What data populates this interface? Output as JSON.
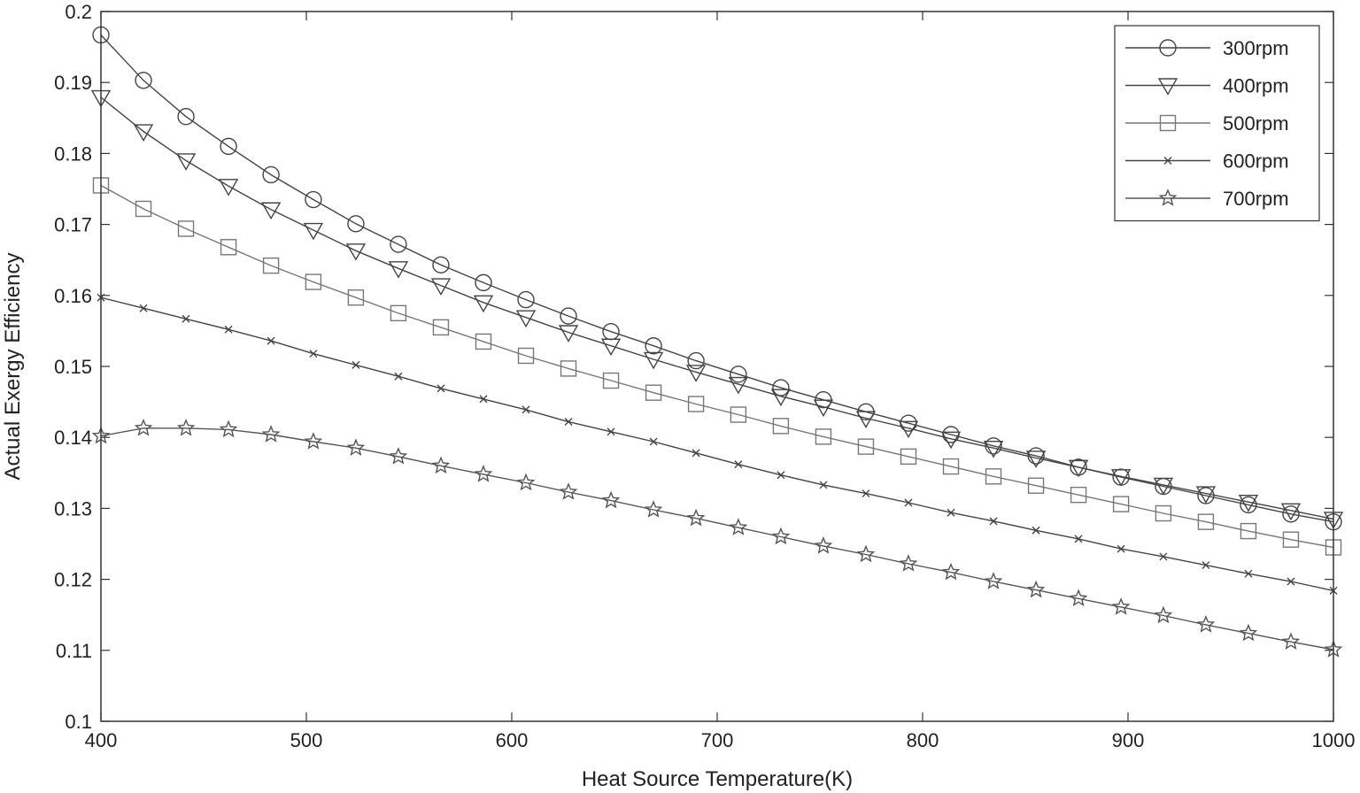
{
  "chart_data": {
    "type": "line",
    "title": "",
    "xlabel": "Heat Source Temperature(K)",
    "ylabel": "Actual Exergy Efficiency",
    "xlim": [
      400,
      1000
    ],
    "ylim": [
      0.1,
      0.2
    ],
    "x_ticks": [
      "400",
      "500",
      "600",
      "700",
      "800",
      "900",
      "1000"
    ],
    "y_ticks": [
      "0.1",
      "0.11",
      "0.12",
      "0.13",
      "0.14",
      "0.15",
      "0.16",
      "0.17",
      "0.18",
      "0.19",
      "0.2"
    ],
    "grid": false,
    "legend_position": "top-right",
    "x": [
      400,
      420.7,
      441.4,
      462.1,
      482.8,
      503.4,
      524.1,
      544.8,
      565.5,
      586.2,
      606.9,
      627.6,
      648.3,
      669.0,
      689.7,
      710.3,
      731.0,
      751.7,
      772.4,
      793.1,
      813.8,
      834.5,
      855.2,
      875.9,
      896.6,
      917.2,
      937.9,
      958.6,
      979.3,
      1000
    ],
    "series": [
      {
        "name": "300rpm",
        "marker": "circle",
        "color": "#444444",
        "values": [
          0.1967,
          0.1903,
          0.1852,
          0.181,
          0.177,
          0.1735,
          0.1701,
          0.1672,
          0.1643,
          0.1618,
          0.1594,
          0.1571,
          0.1549,
          0.1529,
          0.1508,
          0.1489,
          0.147,
          0.1453,
          0.1436,
          0.142,
          0.1404,
          0.1388,
          0.1374,
          0.1358,
          0.1344,
          0.1331,
          0.1318,
          0.1305,
          0.1292,
          0.1281
        ]
      },
      {
        "name": "400rpm",
        "marker": "triangle-down",
        "color": "#444444",
        "values": [
          0.1879,
          0.1831,
          0.179,
          0.1754,
          0.1721,
          0.1692,
          0.1663,
          0.1638,
          0.1614,
          0.159,
          0.1569,
          0.1548,
          0.1529,
          0.151,
          0.1492,
          0.1475,
          0.1458,
          0.1443,
          0.1427,
          0.1413,
          0.1398,
          0.1385,
          0.1371,
          0.1358,
          0.1345,
          0.1333,
          0.1321,
          0.1309,
          0.1297,
          0.1285
        ]
      },
      {
        "name": "500rpm",
        "marker": "square",
        "color": "#777777",
        "values": [
          0.1755,
          0.1722,
          0.1694,
          0.1668,
          0.1642,
          0.1619,
          0.1597,
          0.1575,
          0.1555,
          0.1535,
          0.1515,
          0.1497,
          0.148,
          0.1463,
          0.1447,
          0.1432,
          0.1416,
          0.1401,
          0.1387,
          0.1373,
          0.1359,
          0.1345,
          0.1332,
          0.1319,
          0.1306,
          0.1293,
          0.1281,
          0.1268,
          0.1256,
          0.1245
        ]
      },
      {
        "name": "600rpm",
        "marker": "x",
        "color": "#444444",
        "values": [
          0.1597,
          0.1582,
          0.1567,
          0.1552,
          0.1536,
          0.1518,
          0.1502,
          0.1486,
          0.1469,
          0.1454,
          0.1439,
          0.1422,
          0.1408,
          0.1394,
          0.1378,
          0.1362,
          0.1347,
          0.1333,
          0.1321,
          0.1308,
          0.1294,
          0.1282,
          0.1269,
          0.1257,
          0.1243,
          0.1232,
          0.122,
          0.1208,
          0.1197,
          0.1184
        ]
      },
      {
        "name": "700rpm",
        "marker": "star",
        "color": "#555555",
        "values": [
          0.1402,
          0.1413,
          0.1413,
          0.1411,
          0.1404,
          0.1394,
          0.1385,
          0.1373,
          0.136,
          0.1348,
          0.1336,
          0.1323,
          0.1311,
          0.1298,
          0.1286,
          0.1273,
          0.126,
          0.1247,
          0.1235,
          0.1222,
          0.121,
          0.1197,
          0.1185,
          0.1173,
          0.1161,
          0.1149,
          0.1136,
          0.1124,
          0.1112,
          0.1101
        ]
      }
    ]
  }
}
